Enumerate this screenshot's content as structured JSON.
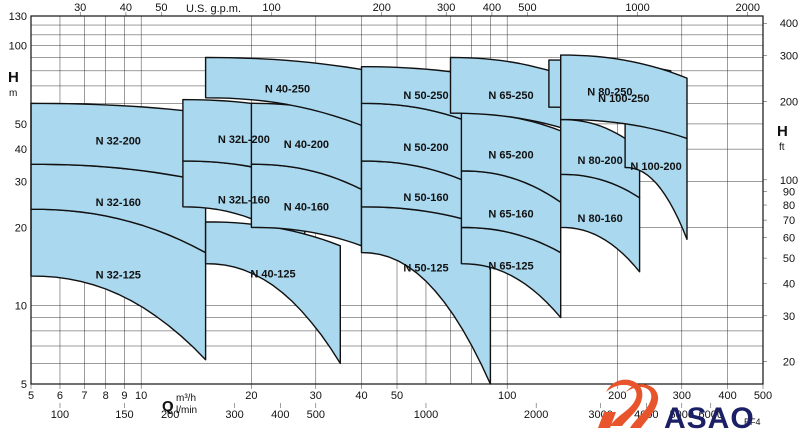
{
  "chart_data": {
    "type": "area",
    "title": "",
    "x_axis": {
      "label": "Q",
      "units_primary": "m³/h",
      "units_secondary": "l/min",
      "scale": "log",
      "range": [
        5,
        500
      ],
      "ticks_m3h": [
        "5",
        "6",
        "7",
        "8",
        "9",
        "10",
        "20",
        "30",
        "40",
        "50",
        "100",
        "200",
        "300",
        "400",
        "500"
      ],
      "ticks_lmin": [
        "100",
        "150",
        "200",
        "300",
        "400",
        "500",
        "1000",
        "2000",
        "3000",
        "4000",
        "5000",
        "6000"
      ],
      "ticks_usgpm_label": "U.S. g.p.m.",
      "ticks_usgpm": [
        "30",
        "40",
        "50",
        "100",
        "200",
        "300",
        "400",
        "500",
        "1000",
        "2000"
      ]
    },
    "y_axis": {
      "label": "H",
      "units": "m",
      "scale": "log",
      "range": [
        5,
        130
      ],
      "ticks_m": [
        "5",
        "10",
        "20",
        "30",
        "40",
        "50",
        "100",
        "130"
      ],
      "right_label": "H",
      "right_units": "ft",
      "ticks_ft": [
        "20",
        "30",
        "40",
        "50",
        "60",
        "70",
        "80",
        "90",
        "100",
        "200",
        "300",
        "400"
      ]
    },
    "grid": true,
    "regions": [
      {
        "name": "N 32-125",
        "label": "N 32-125",
        "q": [
          5,
          15
        ],
        "h_top": [
          23.5,
          16
        ],
        "h_bottom": [
          13,
          6.2
        ]
      },
      {
        "name": "N 32-160",
        "label": "N 32-160",
        "q": [
          5,
          15
        ],
        "h_top": [
          35,
          30
        ],
        "h_bottom": [
          23.5,
          16
        ]
      },
      {
        "name": "N 32-200",
        "label": "N 32-200",
        "q": [
          5,
          15
        ],
        "h_top": [
          60,
          55
        ],
        "h_bottom": [
          35,
          30
        ]
      },
      {
        "name": "N 32L-160",
        "label": "N 32L-160",
        "q": [
          13,
          28
        ],
        "h_top": [
          36,
          30
        ],
        "h_bottom": [
          24,
          16.5
        ]
      },
      {
        "name": "N 32L-200",
        "label": "N 32L-200",
        "q": [
          13,
          28
        ],
        "h_top": [
          62,
          55
        ],
        "h_bottom": [
          36,
          30
        ]
      },
      {
        "name": "N 40-125",
        "label": "N 40-125",
        "q": [
          15,
          35
        ],
        "h_top": [
          21,
          17
        ],
        "h_bottom": [
          14.5,
          6
        ]
      },
      {
        "name": "N 40-160",
        "label": "N 40-160",
        "q": [
          20,
          40
        ],
        "h_top": [
          35,
          28
        ],
        "h_bottom": [
          20,
          17
        ]
      },
      {
        "name": "N 40-200",
        "label": "N 40-200",
        "q": [
          20,
          40
        ],
        "h_top": [
          60,
          52
        ],
        "h_bottom": [
          35,
          28
        ]
      },
      {
        "name": "N 40-250",
        "label": "N 40-250",
        "q": [
          15,
          42
        ],
        "h_top": [
          90,
          80
        ],
        "h_bottom": [
          63,
          48
        ]
      },
      {
        "name": "N 50-125",
        "label": "N 50-125",
        "q": [
          40,
          90
        ],
        "h_top": [
          24,
          20
        ],
        "h_bottom": [
          16,
          5
        ]
      },
      {
        "name": "N 50-160",
        "label": "N 50-160",
        "q": [
          40,
          90
        ],
        "h_top": [
          36,
          27
        ],
        "h_bottom": [
          24,
          20
        ]
      },
      {
        "name": "N 50-200",
        "label": "N 50-200",
        "q": [
          40,
          90
        ],
        "h_top": [
          60,
          47
        ],
        "h_bottom": [
          36,
          27
        ]
      },
      {
        "name": "N 50-250",
        "label": "N 50-250",
        "q": [
          40,
          90
        ],
        "h_top": [
          83,
          75
        ],
        "h_bottom": [
          60,
          47
        ]
      },
      {
        "name": "N 65-125",
        "label": "N 65-125",
        "q": [
          75,
          140
        ],
        "h_top": [
          20,
          16
        ],
        "h_bottom": [
          14.5,
          9
        ]
      },
      {
        "name": "N 65-160",
        "label": "N 65-160",
        "q": [
          75,
          140
        ],
        "h_top": [
          33,
          25
        ],
        "h_bottom": [
          20,
          16
        ]
      },
      {
        "name": "N 65-200",
        "label": "N 65-200",
        "q": [
          75,
          140
        ],
        "h_top": [
          55,
          47
        ],
        "h_bottom": [
          33,
          25
        ]
      },
      {
        "name": "N 65-250",
        "label": "N 65-250",
        "q": [
          70,
          150
        ],
        "h_top": [
          90,
          75
        ],
        "h_bottom": [
          55,
          47
        ]
      },
      {
        "name": "N 80-160",
        "label": "N 80-160",
        "q": [
          140,
          230
        ],
        "h_top": [
          32,
          26
        ],
        "h_bottom": [
          20,
          13.5
        ]
      },
      {
        "name": "N 80-200",
        "label": "N 80-200",
        "q": [
          140,
          230
        ],
        "h_top": [
          52,
          40
        ],
        "h_bottom": [
          32,
          26
        ]
      },
      {
        "name": "N 80-250",
        "label": "N 80-250",
        "q": [
          130,
          280
        ],
        "h_top": [
          88,
          80
        ],
        "h_bottom": [
          58,
          48
        ]
      },
      {
        "name": "N 100-200",
        "label": "N 100-200",
        "q": [
          210,
          310
        ],
        "h_top": [
          52,
          44
        ],
        "h_bottom": [
          34,
          18
        ]
      },
      {
        "name": "N 100-250",
        "label": "N 100-250",
        "q": [
          140,
          310
        ],
        "h_top": [
          92,
          75
        ],
        "h_bottom": [
          52,
          44
        ]
      }
    ]
  },
  "footnote": "BF4",
  "logo": {
    "text": "ASAO",
    "text_color": "#1b1f66",
    "mark_color": "#e8542b",
    "mark_icon": "stylised-flame-mark-icon"
  },
  "colors": {
    "fill": "#a9d8ef",
    "stroke": "#111111",
    "grid": "#222222"
  }
}
